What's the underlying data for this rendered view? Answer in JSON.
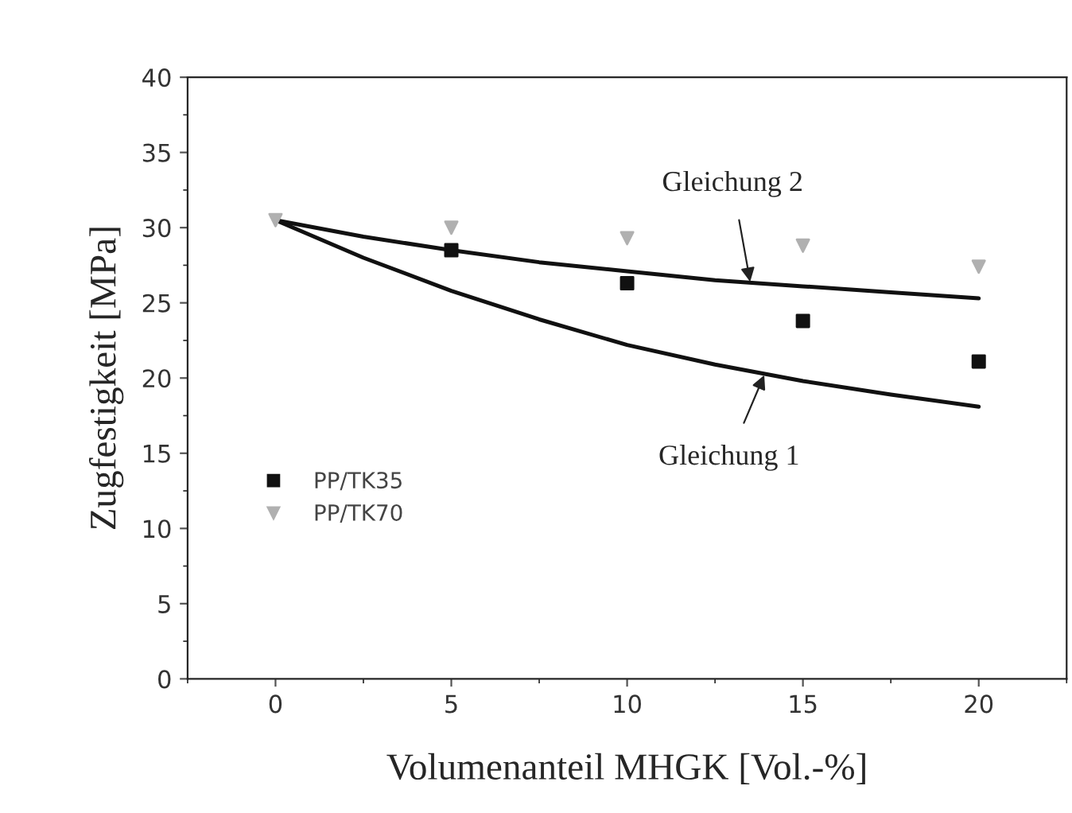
{
  "chart_data": {
    "type": "scatter",
    "xlabel": "Volumenanteil MHGK [Vol.-%]",
    "ylabel": "Zugfestigkeit [MPa]",
    "x": [
      0,
      5,
      10,
      15,
      20
    ],
    "series": [
      {
        "name": "PP/TK35",
        "color": "#111111",
        "marker": "square",
        "values": [
          null,
          28.5,
          26.3,
          23.8,
          21.1
        ]
      },
      {
        "name": "PP/TK70",
        "color": "#b0b0b0",
        "marker": "triangle",
        "values": [
          30.5,
          30.0,
          29.3,
          28.8,
          27.4
        ]
      },
      {
        "type": "line",
        "color": "#111111",
        "marker": "none",
        "x": [
          0,
          2.5,
          5,
          7.5,
          10,
          12.5,
          15,
          17.5,
          20
        ],
        "values": [
          30.5,
          28.0,
          25.8,
          23.9,
          22.2,
          20.9,
          19.8,
          18.9,
          18.1
        ]
      },
      {
        "type": "line",
        "color": "#111111",
        "marker": "none",
        "x": [
          0,
          2.5,
          5,
          7.5,
          10,
          12.5,
          15,
          17.5,
          20
        ],
        "values": [
          30.5,
          29.4,
          28.5,
          27.7,
          27.1,
          26.5,
          26.1,
          25.7,
          25.3
        ]
      }
    ],
    "annotations": [
      {
        "text": "Gleichung 2",
        "x": 13.5,
        "y": 26.4
      },
      {
        "text": "Gleichung 1",
        "x": 13.9,
        "y": 20.2
      }
    ],
    "xlim": [
      -2.5,
      22.5
    ],
    "xticks": [
      0,
      5,
      10,
      15,
      20
    ],
    "ylim": [
      0,
      40
    ],
    "yticks": [
      0,
      5,
      10,
      15,
      20,
      25,
      30,
      35,
      40
    ],
    "grid": false,
    "legend": "left"
  }
}
